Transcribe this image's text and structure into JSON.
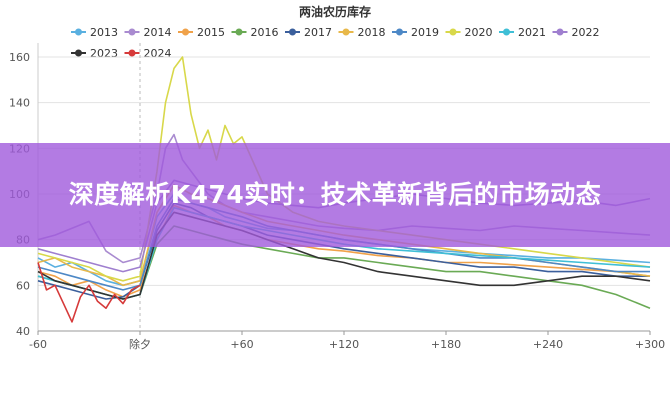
{
  "chart_data": {
    "type": "line",
    "title": "两油农历库存",
    "x_ticks": [
      "-60",
      "除夕",
      "+60",
      "+120",
      "+180",
      "+240",
      "+300"
    ],
    "x_tick_values": [
      -60,
      0,
      60,
      120,
      180,
      240,
      300
    ],
    "xlim": [
      -60,
      300
    ],
    "ylim": [
      40,
      160
    ],
    "y_ticks": [
      40,
      60,
      80,
      100,
      120,
      140,
      160
    ],
    "grid": "horizontal",
    "legend_position": "top",
    "series": [
      {
        "name": "2013",
        "color": "#5ab0e0",
        "x": [
          -60,
          -50,
          -40,
          -30,
          -20,
          -10,
          0,
          10,
          20,
          30,
          40,
          50,
          60,
          75,
          90,
          105,
          120,
          140,
          160,
          180,
          200,
          220,
          240,
          260,
          280,
          300
        ],
        "values": [
          72,
          68,
          70,
          66,
          62,
          60,
          62,
          90,
          100,
          96,
          94,
          90,
          88,
          85,
          84,
          82,
          80,
          78,
          76,
          75,
          74,
          73,
          72,
          72,
          71,
          70
        ]
      },
      {
        "name": "2014",
        "color": "#a98bd0",
        "x": [
          -60,
          -50,
          -40,
          -30,
          -20,
          -10,
          0,
          10,
          15,
          20,
          25,
          30,
          40,
          50,
          60,
          75,
          90,
          105,
          120,
          140,
          160,
          180,
          200,
          220,
          240,
          260,
          280,
          300
        ],
        "values": [
          80,
          82,
          85,
          88,
          75,
          70,
          72,
          100,
          120,
          126,
          115,
          110,
          100,
          95,
          92,
          90,
          88,
          86,
          85,
          84,
          86,
          85,
          84,
          86,
          85,
          84,
          83,
          82
        ]
      },
      {
        "name": "2015",
        "color": "#f0a24a",
        "x": [
          -60,
          -50,
          -40,
          -30,
          -20,
          -10,
          0,
          10,
          20,
          30,
          40,
          50,
          60,
          75,
          90,
          105,
          120,
          140,
          160,
          180,
          200,
          220,
          240,
          260,
          280,
          300
        ],
        "values": [
          66,
          64,
          60,
          62,
          58,
          55,
          58,
          80,
          95,
          92,
          90,
          86,
          84,
          80,
          78,
          76,
          75,
          73,
          72,
          70,
          70,
          69,
          68,
          67,
          66,
          64
        ]
      },
      {
        "name": "2016",
        "color": "#6aaa55",
        "x": [
          -60,
          -50,
          -40,
          -30,
          -20,
          -10,
          0,
          10,
          20,
          30,
          40,
          50,
          60,
          75,
          90,
          105,
          120,
          140,
          160,
          180,
          200,
          220,
          240,
          260,
          280,
          300
        ],
        "values": [
          64,
          62,
          60,
          58,
          56,
          54,
          56,
          78,
          86,
          84,
          82,
          80,
          78,
          76,
          74,
          72,
          72,
          70,
          68,
          66,
          66,
          64,
          62,
          60,
          56,
          50
        ]
      },
      {
        "name": "2017",
        "color": "#3b5f9c",
        "x": [
          -60,
          -50,
          -40,
          -30,
          -20,
          -10,
          0,
          10,
          20,
          30,
          40,
          50,
          60,
          75,
          90,
          105,
          120,
          140,
          160,
          180,
          200,
          220,
          240,
          260,
          280,
          300
        ],
        "values": [
          62,
          60,
          58,
          56,
          54,
          55,
          60,
          84,
          96,
          94,
          90,
          88,
          86,
          82,
          80,
          78,
          76,
          74,
          72,
          70,
          68,
          68,
          66,
          66,
          64,
          64
        ]
      },
      {
        "name": "2018",
        "color": "#e8b84a",
        "x": [
          -60,
          -50,
          -40,
          -30,
          -20,
          -10,
          0,
          10,
          20,
          30,
          40,
          50,
          60,
          75,
          90,
          105,
          120,
          140,
          160,
          180,
          200,
          220,
          240,
          260,
          280,
          300
        ],
        "values": [
          70,
          72,
          68,
          66,
          64,
          60,
          62,
          92,
          104,
          100,
          98,
          95,
          92,
          88,
          86,
          84,
          82,
          80,
          78,
          76,
          74,
          72,
          70,
          68,
          66,
          64
        ]
      },
      {
        "name": "2019",
        "color": "#4d88c6",
        "x": [
          -60,
          -50,
          -40,
          -30,
          -20,
          -10,
          0,
          10,
          20,
          30,
          40,
          50,
          60,
          75,
          90,
          105,
          120,
          140,
          160,
          180,
          200,
          220,
          240,
          260,
          280,
          300
        ],
        "values": [
          68,
          66,
          64,
          62,
          60,
          58,
          60,
          86,
          98,
          96,
          94,
          92,
          90,
          86,
          84,
          82,
          80,
          78,
          76,
          74,
          72,
          72,
          70,
          68,
          66,
          66
        ]
      },
      {
        "name": "2020",
        "color": "#d8d84a",
        "x": [
          -60,
          -50,
          -40,
          -30,
          -20,
          -10,
          0,
          10,
          15,
          20,
          25,
          30,
          35,
          40,
          45,
          50,
          55,
          60,
          75,
          90,
          105,
          120,
          140,
          160,
          180,
          200,
          220,
          240,
          260,
          280,
          300
        ],
        "values": [
          74,
          72,
          70,
          68,
          64,
          62,
          64,
          110,
          140,
          155,
          160,
          135,
          120,
          128,
          115,
          130,
          122,
          125,
          100,
          92,
          88,
          86,
          84,
          82,
          80,
          78,
          76,
          74,
          72,
          70,
          68
        ]
      },
      {
        "name": "2021",
        "color": "#3fbfd6",
        "x": [
          -60,
          -50,
          -40,
          -30,
          -20,
          -10,
          0,
          10,
          20,
          30,
          40,
          50,
          60,
          75,
          90,
          105,
          120,
          140,
          160,
          180,
          200,
          220,
          240,
          260,
          280,
          300
        ],
        "values": [
          64,
          62,
          60,
          58,
          56,
          54,
          56,
          80,
          94,
          92,
          90,
          88,
          86,
          84,
          82,
          80,
          78,
          76,
          75,
          74,
          73,
          72,
          71,
          70,
          69,
          68
        ]
      },
      {
        "name": "2022",
        "color": "#9f7fcf",
        "x": [
          -60,
          -50,
          -40,
          -30,
          -20,
          -10,
          0,
          10,
          20,
          30,
          40,
          50,
          60,
          75,
          90,
          105,
          120,
          140,
          160,
          180,
          200,
          220,
          240,
          260,
          280,
          300
        ],
        "values": [
          76,
          74,
          72,
          70,
          68,
          66,
          68,
          96,
          106,
          104,
          102,
          100,
          98,
          96,
          95,
          94,
          96,
          98,
          100,
          98,
          96,
          95,
          96,
          97,
          95,
          98
        ]
      },
      {
        "name": "2023",
        "color": "#333333",
        "x": [
          -60,
          -50,
          -40,
          -30,
          -20,
          -10,
          0,
          10,
          20,
          30,
          40,
          50,
          60,
          75,
          90,
          105,
          120,
          140,
          160,
          180,
          200,
          220,
          240,
          260,
          280,
          300
        ],
        "values": [
          66,
          62,
          60,
          58,
          56,
          54,
          56,
          82,
          92,
          90,
          88,
          86,
          84,
          80,
          76,
          72,
          70,
          66,
          64,
          62,
          60,
          60,
          62,
          64,
          64,
          62
        ]
      },
      {
        "name": "2024",
        "color": "#d63a3a",
        "x": [
          -60,
          -55,
          -50,
          -45,
          -40,
          -35,
          -30,
          -25,
          -20,
          -15,
          -10,
          -5,
          0
        ],
        "values": [
          70,
          58,
          60,
          52,
          44,
          55,
          60,
          53,
          50,
          56,
          52,
          58,
          60
        ]
      }
    ]
  },
  "overlay": {
    "headline": "深度解析K474实时：技术革新背后的市场动态"
  }
}
